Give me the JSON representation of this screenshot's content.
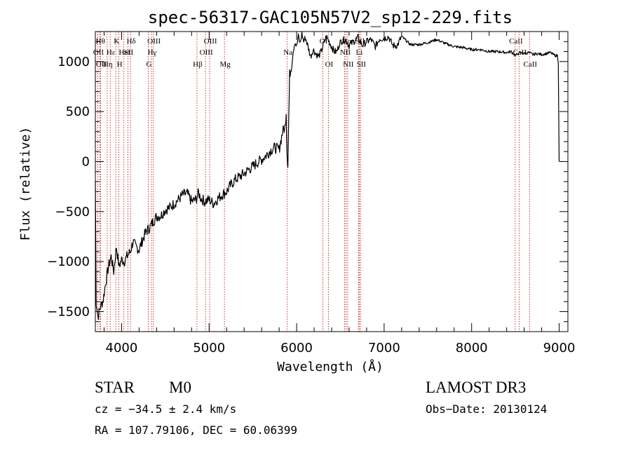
{
  "chart_data": {
    "type": "line",
    "title": "spec-56317-GAC105N57V2_sp12-229.fits",
    "xlabel": "Wavelength (Å)",
    "ylabel": "Flux (relative)",
    "xlim": [
      3700,
      9100
    ],
    "ylim": [
      -1700,
      1300
    ],
    "xticks": [
      4000,
      5000,
      6000,
      7000,
      8000,
      9000
    ],
    "yticks": [
      -1500,
      -1000,
      -500,
      0,
      500,
      1000
    ],
    "grid": false,
    "series": [
      {
        "name": "flux",
        "x": [
          3700,
          3710,
          3730,
          3760,
          3790,
          3820,
          3850,
          3880,
          3910,
          3940,
          3970,
          4000,
          4030,
          4060,
          4100,
          4130,
          4160,
          4200,
          4240,
          4280,
          4320,
          4360,
          4400,
          4450,
          4500,
          4550,
          4600,
          4650,
          4700,
          4750,
          4800,
          4850,
          4880,
          4900,
          4950,
          5000,
          5050,
          5100,
          5150,
          5200,
          5250,
          5300,
          5350,
          5400,
          5450,
          5500,
          5550,
          5600,
          5650,
          5700,
          5750,
          5800,
          5840,
          5870,
          5880,
          5890,
          5900,
          5910,
          5920,
          5940,
          5960,
          5980,
          6000,
          6020,
          6040,
          6060,
          6080,
          6100,
          6130,
          6160,
          6190,
          6220,
          6250,
          6280,
          6310,
          6340,
          6370,
          6400,
          6430,
          6460,
          6490,
          6520,
          6560,
          6600,
          6650,
          6700,
          6750,
          6800,
          6850,
          6900,
          6950,
          7000,
          7050,
          7100,
          7150,
          7200,
          7300,
          7400,
          7500,
          7600,
          7700,
          7800,
          7900,
          8000,
          8100,
          8200,
          8300,
          8400,
          8450,
          8500,
          8550,
          8600,
          8650,
          8700,
          8750,
          8800,
          8850,
          8900,
          8950,
          8980,
          8990,
          9000
        ],
        "y": [
          -200,
          -1400,
          -1550,
          -1450,
          -1380,
          -1200,
          -1050,
          -950,
          -1100,
          -850,
          -1050,
          -980,
          -1000,
          -950,
          -900,
          -800,
          -850,
          -880,
          -780,
          -700,
          -660,
          -600,
          -550,
          -540,
          -480,
          -460,
          -420,
          -380,
          -330,
          -320,
          -400,
          -380,
          -310,
          -360,
          -400,
          -380,
          -420,
          -370,
          -330,
          -300,
          -230,
          -180,
          -150,
          -120,
          -80,
          -50,
          -10,
          20,
          60,
          110,
          140,
          120,
          300,
          350,
          500,
          100,
          -30,
          420,
          870,
          950,
          1100,
          1200,
          1150,
          1250,
          1180,
          1280,
          1200,
          1240,
          1150,
          1050,
          1120,
          1080,
          1050,
          1100,
          1180,
          1250,
          1200,
          1150,
          1100,
          1100,
          1180,
          1210,
          1220,
          1160,
          1200,
          1240,
          1160,
          1200,
          1220,
          1150,
          1230,
          1230,
          1250,
          1160,
          1160,
          1250,
          1170,
          1170,
          1190,
          1220,
          1180,
          1150,
          1140,
          1120,
          1120,
          1100,
          1100,
          1090,
          1100,
          1060,
          1090,
          1080,
          1090,
          1070,
          1080,
          1070,
          1080,
          1090,
          1060,
          1060,
          1000,
          0
        ]
      }
    ],
    "lines": [
      {
        "wavelength": 3727,
        "label": "OII",
        "row": 2
      },
      {
        "wavelength": 3750,
        "label": "Hθ",
        "row": 1
      },
      {
        "wavelength": 3760,
        "label": "OII",
        "row": 3
      },
      {
        "wavelength": 3835,
        "label": "Hη",
        "row": 3
      },
      {
        "wavelength": 3870,
        "label": "Hε",
        "row": 2
      },
      {
        "wavelength": 3934,
        "label": "K",
        "row": 1
      },
      {
        "wavelength": 3969,
        "label": "H",
        "row": 3
      },
      {
        "wavelength": 4026,
        "label": "HeI",
        "row": 2
      },
      {
        "wavelength": 4072,
        "label": "SII",
        "row": 2
      },
      {
        "wavelength": 4102,
        "label": "Hδ",
        "row": 1
      },
      {
        "wavelength": 4305,
        "label": "G",
        "row": 3
      },
      {
        "wavelength": 4341,
        "label": "Hγ",
        "row": 2
      },
      {
        "wavelength": 4363,
        "label": "OIII",
        "row": 1
      },
      {
        "wavelength": 4861,
        "label": "Hβ",
        "row": 3
      },
      {
        "wavelength": 4959,
        "label": "OIII",
        "row": 2
      },
      {
        "wavelength": 5007,
        "label": "OIII",
        "row": 1
      },
      {
        "wavelength": 5175,
        "label": "Mg",
        "row": 3
      },
      {
        "wavelength": 5893,
        "label": "Na",
        "row": 2
      },
      {
        "wavelength": 6300,
        "label": "OI",
        "row": 1
      },
      {
        "wavelength": 6363,
        "label": "OI",
        "row": 3
      },
      {
        "wavelength": 6548,
        "label": "NII",
        "row": 2
      },
      {
        "wavelength": 6563,
        "label": "Hα",
        "row": 1
      },
      {
        "wavelength": 6583,
        "label": "NII",
        "row": 3
      },
      {
        "wavelength": 6716,
        "label": "SII",
        "row": 1
      },
      {
        "wavelength": 6708,
        "label": "Li",
        "row": 2
      },
      {
        "wavelength": 6731,
        "label": "SII",
        "row": 3
      },
      {
        "wavelength": 8498,
        "label": "CaII",
        "row": 1
      },
      {
        "wavelength": 8542,
        "label": "CaII",
        "row": 2
      },
      {
        "wavelength": 8662,
        "label": "CaII",
        "row": 3
      }
    ]
  },
  "info": {
    "object_class": "STAR",
    "subclass": "M0",
    "survey": "LAMOST DR3",
    "redshift": "cz = −34.5 ± 2.4 km/s",
    "obs_date": "Obs−Date: 20130124",
    "coords": "RA = 107.79106, DEC =  60.06399"
  },
  "colors": {
    "spectrum": "#000000",
    "line_markers": "#c00000"
  }
}
